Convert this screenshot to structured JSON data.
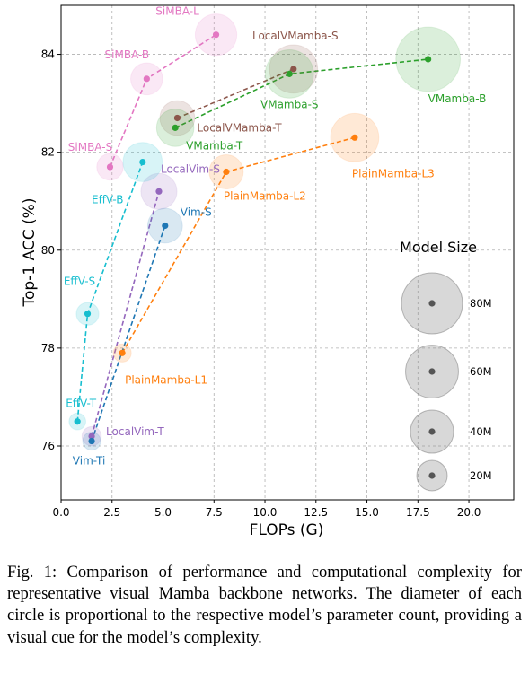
{
  "caption": "Fig. 1: Comparison of performance and computational complexity for representative visual Mamba backbone networks. The diameter of each circle is proportional to the respective model’s parameter count, providing a visual cue for the model’s complexity.",
  "chart_data": {
    "type": "scatter",
    "xlabel": "FLOPs (G)",
    "ylabel": "Top-1 ACC (%)",
    "xlim": [
      0,
      22.2
    ],
    "ylim": [
      74.9,
      85.0
    ],
    "xticks": [
      0.0,
      2.5,
      5.0,
      7.5,
      10.0,
      12.5,
      15.0,
      17.5,
      20.0
    ],
    "xtick_labels": [
      "0.0",
      "2.5",
      "5.0",
      "7.5",
      "10.0",
      "12.5",
      "15.0",
      "17.5",
      "20.0"
    ],
    "yticks": [
      76,
      78,
      80,
      82,
      84
    ],
    "ytick_labels": [
      "76",
      "78",
      "80",
      "82",
      "84"
    ],
    "grid": true,
    "series": [
      {
        "name": "SiMBA",
        "color": "#e377c2",
        "points": [
          {
            "label": "SiMBA-S",
            "x": 2.4,
            "y": 81.7,
            "params": 15
          },
          {
            "label": "SiMBA-B",
            "x": 4.2,
            "y": 83.5,
            "params": 22
          },
          {
            "label": "SiMBA-L",
            "x": 7.6,
            "y": 84.4,
            "params": 37
          }
        ]
      },
      {
        "name": "LocalVMamba",
        "color": "#8c564b",
        "points": [
          {
            "label": "LocalVMamba-T",
            "x": 5.7,
            "y": 82.7,
            "params": 26
          },
          {
            "label": "LocalVMamba-S",
            "x": 11.4,
            "y": 83.7,
            "params": 50
          }
        ]
      },
      {
        "name": "VMamba",
        "color": "#2ca02c",
        "points": [
          {
            "label": "VMamba-T",
            "x": 5.6,
            "y": 82.5,
            "params": 30
          },
          {
            "label": "VMamba-S",
            "x": 11.2,
            "y": 83.6,
            "params": 50
          },
          {
            "label": "VMamba-B",
            "x": 18.0,
            "y": 83.9,
            "params": 89
          }
        ]
      },
      {
        "name": "PlainMamba",
        "color": "#ff7f0e",
        "points": [
          {
            "label": "PlainMamba-L1",
            "x": 3.0,
            "y": 77.9,
            "params": 7
          },
          {
            "label": "PlainMamba-L2",
            "x": 8.1,
            "y": 81.6,
            "params": 25
          },
          {
            "label": "PlainMamba-L3",
            "x": 14.4,
            "y": 82.3,
            "params": 50
          }
        ]
      },
      {
        "name": "LocalVim",
        "color": "#9467bd",
        "points": [
          {
            "label": "LocalVim-T",
            "x": 1.5,
            "y": 76.2,
            "params": 8
          },
          {
            "label": "LocalVim-S",
            "x": 4.8,
            "y": 81.2,
            "params": 28
          }
        ]
      },
      {
        "name": "Vim",
        "color": "#1f77b4",
        "points": [
          {
            "label": "Vim-Ti",
            "x": 1.5,
            "y": 76.1,
            "params": 7
          },
          {
            "label": "Vim-S",
            "x": 5.1,
            "y": 80.5,
            "params": 26
          }
        ]
      },
      {
        "name": "EffV",
        "color": "#17becf",
        "points": [
          {
            "label": "EffV-T",
            "x": 0.8,
            "y": 76.5,
            "params": 6
          },
          {
            "label": "EffV-S",
            "x": 1.3,
            "y": 78.7,
            "params": 11
          },
          {
            "label": "EffV-B",
            "x": 4.0,
            "y": 81.8,
            "params": 33
          }
        ]
      }
    ],
    "size_legend": {
      "title": "Model Size",
      "entries": [
        {
          "label": "80M",
          "params": 80
        },
        {
          "label": "60M",
          "params": 60
        },
        {
          "label": "40M",
          "params": 40
        },
        {
          "label": "20M",
          "params": 20
        }
      ]
    }
  }
}
